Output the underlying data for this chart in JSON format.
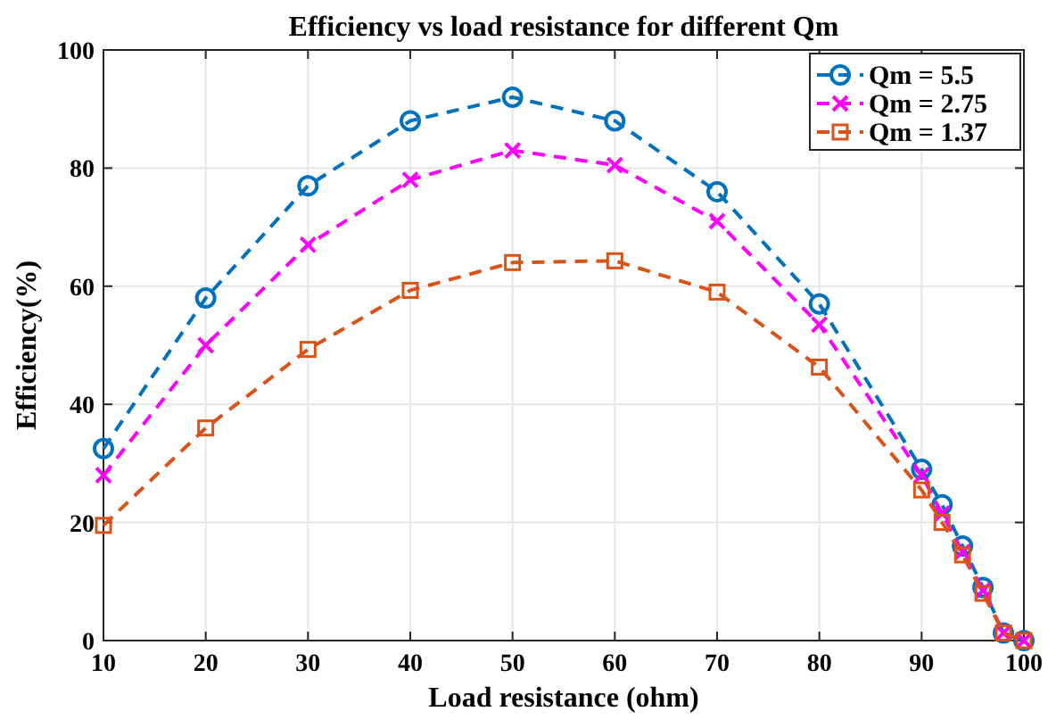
{
  "chart_data": {
    "type": "line",
    "title": "Efficiency vs load resistance for different Qm",
    "xlabel": "Load resistance (ohm)",
    "ylabel": "Efficiency(%)",
    "x": [
      10,
      20,
      30,
      40,
      50,
      60,
      70,
      80,
      90,
      92,
      94,
      96,
      98,
      100
    ],
    "series": [
      {
        "name": "Qm = 5.5",
        "color": "#0072bd",
        "marker": "circle",
        "values": [
          32.5,
          58,
          77,
          88,
          92,
          88,
          76,
          57,
          29,
          23,
          16,
          9,
          1.3,
          0
        ]
      },
      {
        "name": "Qm = 2.75",
        "color": "#ff00ff",
        "marker": "cross",
        "values": [
          28,
          50,
          67,
          78,
          83,
          80.5,
          71,
          53.5,
          28,
          21.5,
          15,
          8.5,
          1.3,
          0
        ]
      },
      {
        "name": "Qm = 1.37",
        "color": "#d95319",
        "marker": "square",
        "values": [
          19.5,
          36,
          49.3,
          59.3,
          64,
          64.3,
          59,
          46.3,
          25.5,
          20,
          14.5,
          8,
          1.3,
          0
        ]
      }
    ],
    "xlim": [
      10,
      100
    ],
    "xticks": [
      10,
      20,
      30,
      40,
      50,
      60,
      70,
      80,
      90,
      100
    ],
    "ylim": [
      0,
      100
    ],
    "yticks": [
      0,
      20,
      40,
      60,
      80,
      100
    ],
    "grid": true,
    "legend": "top right",
    "line_style": "dashed"
  }
}
